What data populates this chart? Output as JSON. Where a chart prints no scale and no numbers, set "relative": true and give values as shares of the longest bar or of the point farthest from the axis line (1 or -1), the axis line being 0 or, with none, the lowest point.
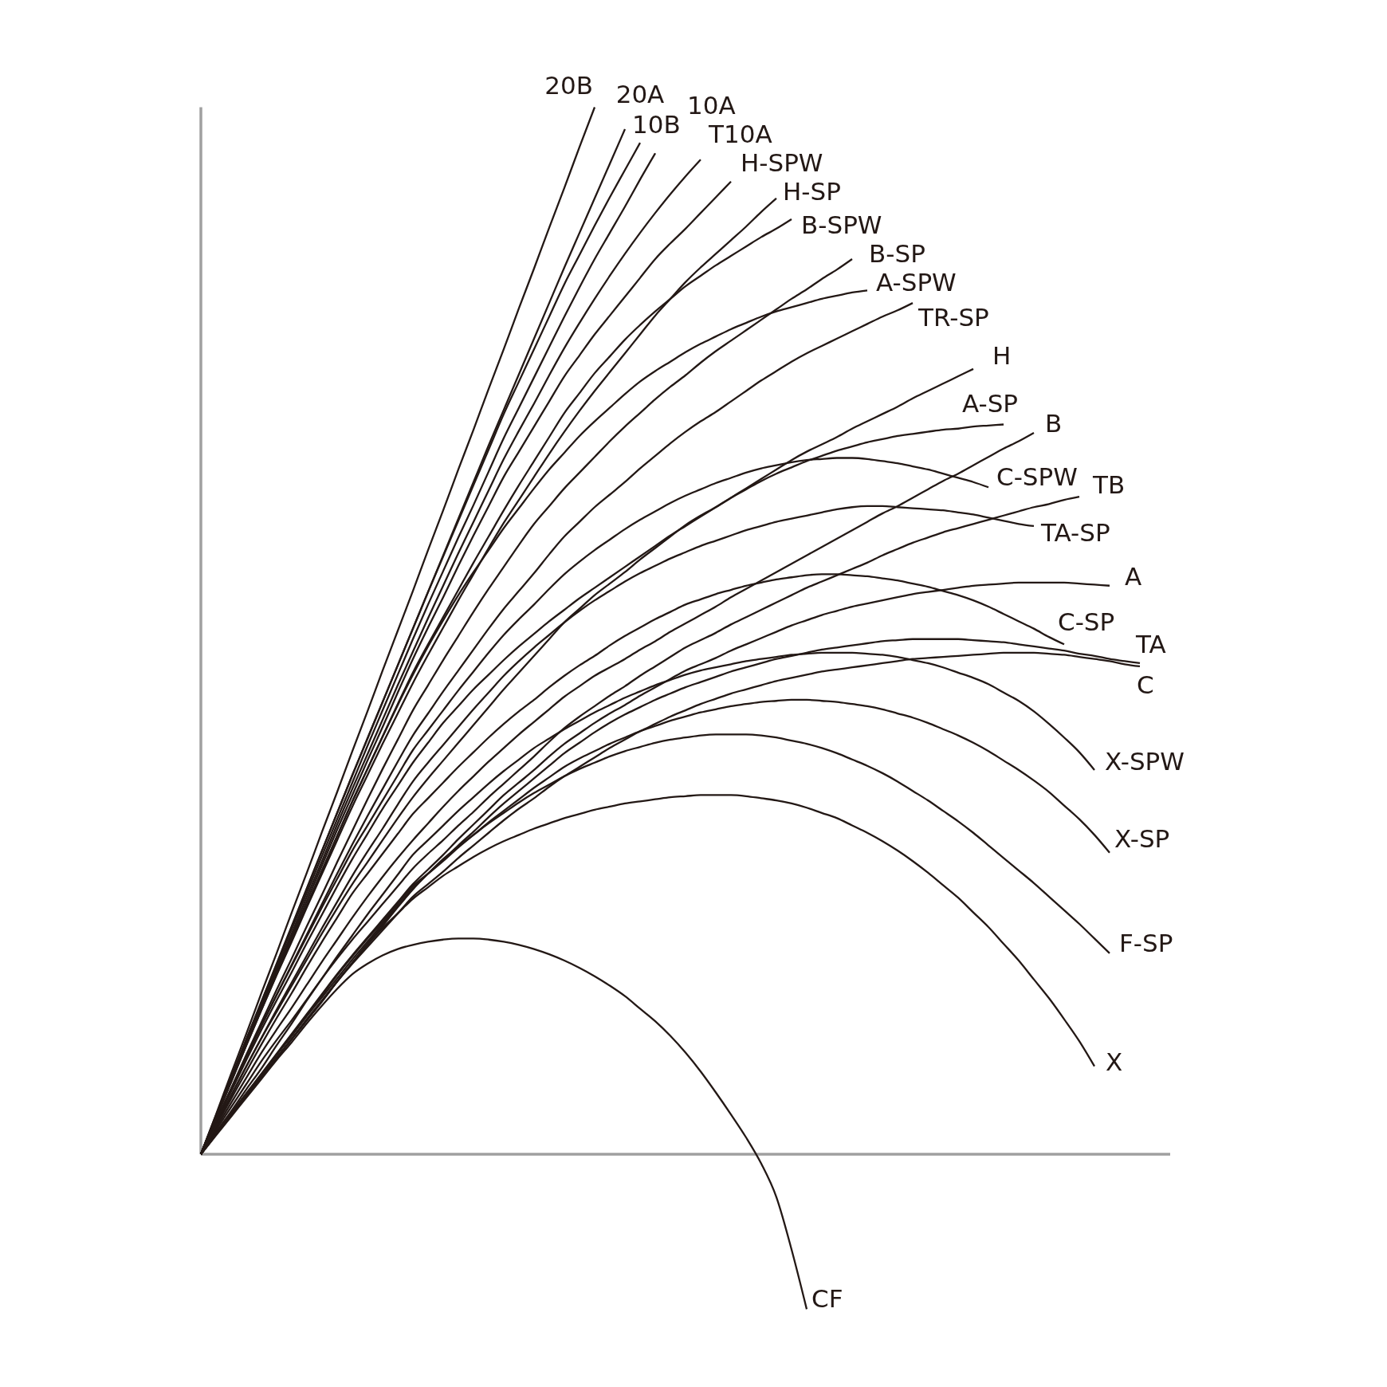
{
  "chart_data": {
    "type": "line",
    "relative": true,
    "categories": [
      null,
      null,
      null,
      null,
      null,
      null,
      null,
      null,
      null,
      null,
      null,
      null,
      null,
      null,
      null,
      null,
      null,
      null,
      null,
      null,
      null,
      null,
      null,
      null,
      null,
      null,
      null,
      null,
      null,
      null,
      null,
      null,
      null,
      null,
      null,
      null,
      null,
      null,
      null,
      null,
      null,
      null,
      null,
      null,
      null,
      null,
      null,
      null,
      null,
      null,
      null,
      null,
      null,
      null,
      null,
      null,
      null,
      null,
      null,
      null,
      null,
      null,
      null,
      null,
      null
    ],
    "series": [
      {
        "name": "20B",
        "color": "#231815",
        "values": [
          0,
          0.038,
          0.077,
          0.115,
          0.154,
          0.192,
          0.231,
          0.269,
          0.308,
          0.346,
          0.385,
          0.423,
          0.462,
          0.5,
          0.538,
          0.577,
          0.615,
          0.654,
          0.692,
          0.731,
          0.769,
          0.808,
          0.846,
          0.885,
          0.923,
          0.962,
          1.0,
          null,
          null,
          null,
          null,
          null,
          null,
          null,
          null,
          null,
          null,
          null,
          null,
          null,
          null,
          null,
          null,
          null,
          null,
          null,
          null,
          null,
          null,
          null,
          null,
          null,
          null,
          null,
          null,
          null,
          null,
          null,
          null,
          null,
          null,
          null,
          null,
          null,
          null
        ]
      },
      {
        "name": "20A",
        "color": "#231815",
        "values": [
          0,
          0.037,
          0.073,
          0.11,
          0.146,
          0.182,
          0.218,
          0.254,
          0.29,
          0.326,
          0.362,
          0.397,
          0.432,
          0.467,
          0.502,
          0.537,
          0.572,
          0.607,
          0.642,
          0.677,
          0.711,
          0.745,
          0.779,
          0.813,
          0.847,
          0.88,
          0.913,
          0.946,
          0.979,
          null,
          null,
          null,
          null,
          null,
          null,
          null,
          null,
          null,
          null,
          null,
          null,
          null,
          null,
          null,
          null,
          null,
          null,
          null,
          null,
          null,
          null,
          null,
          null,
          null,
          null,
          null,
          null,
          null,
          null,
          null,
          null,
          null,
          null,
          null,
          null
        ]
      },
      {
        "name": "10B",
        "color": "#231815",
        "values": [
          0,
          0.037,
          0.073,
          0.109,
          0.145,
          0.181,
          0.217,
          0.254,
          0.29,
          0.326,
          0.362,
          0.397,
          0.432,
          0.467,
          0.502,
          0.537,
          0.571,
          0.605,
          0.639,
          0.673,
          0.707,
          0.738,
          0.769,
          0.8,
          0.831,
          0.859,
          0.887,
          0.914,
          0.94,
          0.966,
          null,
          null,
          null,
          null,
          null,
          null,
          null,
          null,
          null,
          null,
          null,
          null,
          null,
          null,
          null,
          null,
          null,
          null,
          null,
          null,
          null,
          null,
          null,
          null,
          null,
          null,
          null,
          null,
          null,
          null,
          null,
          null,
          null,
          null,
          null
        ]
      },
      {
        "name": "10A",
        "color": "#231815",
        "values": [
          0,
          0.036,
          0.072,
          0.108,
          0.144,
          0.18,
          0.215,
          0.25,
          0.285,
          0.32,
          0.355,
          0.39,
          0.424,
          0.458,
          0.492,
          0.525,
          0.557,
          0.589,
          0.62,
          0.652,
          0.684,
          0.713,
          0.742,
          0.771,
          0.8,
          0.828,
          0.855,
          0.88,
          0.905,
          0.931,
          0.956,
          null,
          null,
          null,
          null,
          null,
          null,
          null,
          null,
          null,
          null,
          null,
          null,
          null,
          null,
          null,
          null,
          null,
          null,
          null,
          null,
          null,
          null,
          null,
          null,
          null,
          null,
          null,
          null,
          null,
          null,
          null,
          null,
          null,
          null
        ]
      },
      {
        "name": "T10A",
        "color": "#231815",
        "values": [
          0,
          0.036,
          0.071,
          0.107,
          0.142,
          0.177,
          0.211,
          0.246,
          0.28,
          0.315,
          0.349,
          0.382,
          0.415,
          0.448,
          0.48,
          0.512,
          0.543,
          0.574,
          0.604,
          0.634,
          0.664,
          0.691,
          0.717,
          0.744,
          0.77,
          0.794,
          0.817,
          0.839,
          0.86,
          0.88,
          0.899,
          0.917,
          0.934,
          0.95,
          null,
          null,
          null,
          null,
          null,
          null,
          null,
          null,
          null,
          null,
          null,
          null,
          null,
          null,
          null,
          null,
          null,
          null,
          null,
          null,
          null,
          null,
          null,
          null,
          null,
          null,
          null,
          null,
          null,
          null,
          null
        ]
      },
      {
        "name": "H-SPW",
        "color": "#231815",
        "values": [
          0,
          0.035,
          0.07,
          0.105,
          0.14,
          0.174,
          0.208,
          0.242,
          0.276,
          0.31,
          0.343,
          0.376,
          0.408,
          0.441,
          0.473,
          0.503,
          0.532,
          0.562,
          0.591,
          0.619,
          0.647,
          0.671,
          0.695,
          0.719,
          0.743,
          0.763,
          0.783,
          0.801,
          0.819,
          0.837,
          0.855,
          0.87,
          0.884,
          0.899,
          0.914,
          0.929,
          null,
          null,
          null,
          null,
          null,
          null,
          null,
          null,
          null,
          null,
          null,
          null,
          null,
          null,
          null,
          null,
          null,
          null,
          null,
          null,
          null,
          null,
          null,
          null,
          null,
          null,
          null,
          null,
          null
        ]
      },
      {
        "name": "H-SP",
        "color": "#231815",
        "values": [
          0,
          0.035,
          0.069,
          0.104,
          0.138,
          0.171,
          0.203,
          0.236,
          0.268,
          0.3,
          0.332,
          0.362,
          0.392,
          0.421,
          0.45,
          0.477,
          0.503,
          0.529,
          0.554,
          0.579,
          0.603,
          0.625,
          0.647,
          0.669,
          0.69,
          0.71,
          0.729,
          0.747,
          0.765,
          0.783,
          0.801,
          0.817,
          0.833,
          0.847,
          0.86,
          0.873,
          0.886,
          0.9,
          0.913,
          null,
          null,
          null,
          null,
          null,
          null,
          null,
          null,
          null,
          null,
          null,
          null,
          null,
          null,
          null,
          null,
          null,
          null,
          null,
          null,
          null,
          null,
          null,
          null,
          null,
          null
        ]
      },
      {
        "name": "B-SPW",
        "color": "#231815",
        "values": [
          0,
          0.035,
          0.07,
          0.105,
          0.139,
          0.172,
          0.205,
          0.238,
          0.271,
          0.304,
          0.337,
          0.368,
          0.399,
          0.43,
          0.46,
          0.487,
          0.513,
          0.539,
          0.565,
          0.59,
          0.615,
          0.639,
          0.662,
          0.685,
          0.708,
          0.727,
          0.746,
          0.762,
          0.778,
          0.792,
          0.805,
          0.817,
          0.829,
          0.839,
          0.849,
          0.858,
          0.867,
          0.876,
          0.884,
          0.893,
          null,
          null,
          null,
          null,
          null,
          null,
          null,
          null,
          null,
          null,
          null,
          null,
          null,
          null,
          null,
          null,
          null,
          null,
          null,
          null,
          null,
          null,
          null,
          null,
          null
        ]
      },
      {
        "name": "B-SP",
        "color": "#231815",
        "values": [
          0,
          0.032,
          0.063,
          0.095,
          0.126,
          0.157,
          0.187,
          0.218,
          0.248,
          0.279,
          0.309,
          0.339,
          0.368,
          0.396,
          0.424,
          0.448,
          0.472,
          0.495,
          0.518,
          0.54,
          0.561,
          0.582,
          0.602,
          0.619,
          0.636,
          0.651,
          0.666,
          0.681,
          0.695,
          0.708,
          0.721,
          0.733,
          0.744,
          0.756,
          0.767,
          0.777,
          0.787,
          0.797,
          0.807,
          0.817,
          0.826,
          0.836,
          0.845,
          0.855,
          null,
          null,
          null,
          null,
          null,
          null,
          null,
          null,
          null,
          null,
          null,
          null,
          null,
          null,
          null,
          null,
          null,
          null,
          null,
          null,
          null
        ]
      },
      {
        "name": "A-SPW",
        "color": "#231815",
        "values": [
          0,
          0.035,
          0.069,
          0.104,
          0.138,
          0.172,
          0.205,
          0.238,
          0.271,
          0.304,
          0.337,
          0.368,
          0.399,
          0.429,
          0.458,
          0.485,
          0.51,
          0.534,
          0.556,
          0.577,
          0.598,
          0.617,
          0.636,
          0.654,
          0.67,
          0.686,
          0.7,
          0.713,
          0.726,
          0.738,
          0.748,
          0.757,
          0.766,
          0.774,
          0.781,
          0.788,
          0.794,
          0.8,
          0.805,
          0.809,
          0.813,
          0.817,
          0.82,
          0.823,
          0.825,
          null,
          null,
          null,
          null,
          null,
          null,
          null,
          null,
          null,
          null,
          null,
          null,
          null,
          null,
          null,
          null,
          null,
          null,
          null,
          null
        ]
      },
      {
        "name": "TR-SP",
        "color": "#231815",
        "values": [
          0,
          0.031,
          0.062,
          0.093,
          0.123,
          0.152,
          0.181,
          0.21,
          0.239,
          0.268,
          0.296,
          0.323,
          0.349,
          0.375,
          0.4,
          0.421,
          0.442,
          0.462,
          0.482,
          0.502,
          0.521,
          0.538,
          0.555,
          0.573,
          0.59,
          0.604,
          0.618,
          0.63,
          0.642,
          0.655,
          0.667,
          0.679,
          0.69,
          0.7,
          0.709,
          0.719,
          0.729,
          0.739,
          0.748,
          0.757,
          0.765,
          0.772,
          0.779,
          0.786,
          0.793,
          0.8,
          0.806,
          0.813,
          null,
          null,
          null,
          null,
          null,
          null,
          null,
          null,
          null,
          null,
          null,
          null,
          null,
          null,
          null,
          null,
          null
        ]
      },
      {
        "name": "H",
        "color": "#231815",
        "values": [
          0,
          0.028,
          0.056,
          0.084,
          0.111,
          0.136,
          0.161,
          0.186,
          0.211,
          0.235,
          0.258,
          0.279,
          0.3,
          0.321,
          0.341,
          0.359,
          0.376,
          0.393,
          0.41,
          0.427,
          0.444,
          0.46,
          0.476,
          0.492,
          0.508,
          0.521,
          0.534,
          0.545,
          0.556,
          0.568,
          0.579,
          0.59,
          0.601,
          0.61,
          0.618,
          0.627,
          0.636,
          0.645,
          0.654,
          0.663,
          0.671,
          0.678,
          0.685,
          0.693,
          0.7,
          0.707,
          0.714,
          0.722,
          0.729,
          0.736,
          0.743,
          0.75,
          null,
          null,
          null,
          null,
          null,
          null,
          null,
          null,
          null,
          null,
          null,
          null,
          null
        ]
      },
      {
        "name": "A-SP",
        "color": "#231815",
        "values": [
          0,
          0.03,
          0.06,
          0.09,
          0.119,
          0.147,
          0.174,
          0.202,
          0.229,
          0.256,
          0.282,
          0.306,
          0.33,
          0.352,
          0.374,
          0.393,
          0.412,
          0.428,
          0.444,
          0.458,
          0.472,
          0.485,
          0.497,
          0.509,
          0.52,
          0.531,
          0.541,
          0.551,
          0.561,
          0.571,
          0.581,
          0.591,
          0.6,
          0.609,
          0.618,
          0.627,
          0.635,
          0.643,
          0.65,
          0.656,
          0.662,
          0.667,
          0.672,
          0.676,
          0.68,
          0.683,
          0.686,
          0.688,
          0.69,
          0.692,
          0.693,
          0.695,
          0.696,
          0.697,
          null,
          null,
          null,
          null,
          null,
          null,
          null,
          null,
          null,
          null,
          null
        ]
      },
      {
        "name": "B",
        "color": "#231815",
        "values": [
          0,
          0.025,
          0.049,
          0.073,
          0.097,
          0.119,
          0.14,
          0.162,
          0.184,
          0.205,
          0.226,
          0.246,
          0.265,
          0.283,
          0.3,
          0.316,
          0.332,
          0.347,
          0.361,
          0.375,
          0.388,
          0.401,
          0.413,
          0.425,
          0.437,
          0.447,
          0.457,
          0.465,
          0.473,
          0.482,
          0.49,
          0.499,
          0.507,
          0.515,
          0.523,
          0.532,
          0.54,
          0.548,
          0.556,
          0.564,
          0.572,
          0.58,
          0.588,
          0.596,
          0.604,
          0.612,
          0.619,
          0.627,
          0.635,
          0.643,
          0.65,
          0.658,
          0.666,
          0.674,
          0.681,
          0.689,
          null,
          null,
          null,
          null,
          null,
          null,
          null,
          null,
          null
        ]
      },
      {
        "name": "C-SPW",
        "color": "#231815",
        "values": [
          0,
          0.031,
          0.062,
          0.093,
          0.123,
          0.152,
          0.18,
          0.208,
          0.236,
          0.263,
          0.29,
          0.314,
          0.338,
          0.362,
          0.386,
          0.405,
          0.424,
          0.443,
          0.461,
          0.479,
          0.496,
          0.511,
          0.525,
          0.54,
          0.554,
          0.566,
          0.577,
          0.587,
          0.597,
          0.606,
          0.614,
          0.622,
          0.629,
          0.635,
          0.641,
          0.646,
          0.651,
          0.655,
          0.658,
          0.661,
          0.663,
          0.664,
          0.665,
          0.665,
          0.664,
          0.662,
          0.66,
          0.657,
          0.654,
          0.65,
          0.646,
          0.642,
          0.637,
          null,
          null,
          null,
          null,
          null,
          null,
          null,
          null,
          null,
          null,
          null,
          null
        ]
      },
      {
        "name": "TB",
        "color": "#231815",
        "values": [
          0,
          0.023,
          0.045,
          0.067,
          0.089,
          0.109,
          0.128,
          0.148,
          0.168,
          0.187,
          0.205,
          0.222,
          0.239,
          0.256,
          0.273,
          0.287,
          0.3,
          0.314,
          0.327,
          0.341,
          0.354,
          0.367,
          0.38,
          0.394,
          0.407,
          0.418,
          0.428,
          0.438,
          0.447,
          0.457,
          0.466,
          0.475,
          0.484,
          0.491,
          0.498,
          0.506,
          0.513,
          0.52,
          0.527,
          0.534,
          0.541,
          0.547,
          0.553,
          0.559,
          0.565,
          0.572,
          0.578,
          0.584,
          0.589,
          0.594,
          0.598,
          0.602,
          0.606,
          0.61,
          0.614,
          0.618,
          0.621,
          0.625,
          0.628,
          null,
          null,
          null,
          null,
          null,
          null
        ]
      },
      {
        "name": "TA-SP",
        "color": "#231815",
        "values": [
          0,
          0.028,
          0.056,
          0.084,
          0.111,
          0.138,
          0.164,
          0.19,
          0.216,
          0.241,
          0.266,
          0.289,
          0.311,
          0.334,
          0.356,
          0.374,
          0.391,
          0.408,
          0.425,
          0.441,
          0.457,
          0.471,
          0.484,
          0.496,
          0.508,
          0.519,
          0.529,
          0.538,
          0.547,
          0.555,
          0.562,
          0.569,
          0.575,
          0.581,
          0.586,
          0.591,
          0.596,
          0.6,
          0.604,
          0.607,
          0.61,
          0.613,
          0.616,
          0.618,
          0.619,
          0.619,
          0.618,
          0.617,
          0.616,
          0.615,
          0.613,
          0.611,
          0.608,
          0.605,
          0.602,
          0.6,
          null,
          null,
          null,
          null,
          null,
          null,
          null,
          null,
          null
        ]
      },
      {
        "name": "A",
        "color": "#231815",
        "values": [
          0,
          0.02,
          0.039,
          0.058,
          0.077,
          0.096,
          0.115,
          0.134,
          0.153,
          0.172,
          0.19,
          0.207,
          0.224,
          0.241,
          0.258,
          0.272,
          0.286,
          0.301,
          0.315,
          0.329,
          0.343,
          0.355,
          0.367,
          0.38,
          0.392,
          0.402,
          0.412,
          0.421,
          0.429,
          0.438,
          0.446,
          0.454,
          0.462,
          0.468,
          0.474,
          0.481,
          0.487,
          0.493,
          0.499,
          0.505,
          0.51,
          0.515,
          0.519,
          0.523,
          0.526,
          0.529,
          0.532,
          0.535,
          0.537,
          0.539,
          0.541,
          0.543,
          0.544,
          0.545,
          0.546,
          0.546,
          0.546,
          0.546,
          0.545,
          0.544,
          0.543,
          null,
          null,
          null,
          null
        ]
      },
      {
        "name": "C-SP",
        "color": "#231815",
        "values": [
          0,
          0.027,
          0.053,
          0.079,
          0.105,
          0.13,
          0.154,
          0.179,
          0.203,
          0.226,
          0.249,
          0.268,
          0.287,
          0.306,
          0.325,
          0.34,
          0.355,
          0.37,
          0.384,
          0.398,
          0.411,
          0.423,
          0.434,
          0.446,
          0.457,
          0.467,
          0.476,
          0.486,
          0.495,
          0.503,
          0.511,
          0.518,
          0.525,
          0.53,
          0.535,
          0.539,
          0.543,
          0.546,
          0.549,
          0.551,
          0.553,
          0.554,
          0.554,
          0.553,
          0.552,
          0.55,
          0.548,
          0.545,
          0.542,
          0.538,
          0.534,
          0.529,
          0.523,
          0.516,
          0.509,
          0.502,
          0.494,
          0.487,
          null,
          null,
          null,
          null,
          null,
          null,
          null
        ]
      },
      {
        "name": "TA",
        "color": "#231815",
        "values": [
          0,
          0.019,
          0.038,
          0.057,
          0.076,
          0.095,
          0.113,
          0.132,
          0.15,
          0.168,
          0.186,
          0.203,
          0.22,
          0.237,
          0.254,
          0.268,
          0.281,
          0.295,
          0.308,
          0.322,
          0.335,
          0.347,
          0.359,
          0.371,
          0.383,
          0.393,
          0.403,
          0.412,
          0.42,
          0.427,
          0.434,
          0.44,
          0.446,
          0.451,
          0.456,
          0.461,
          0.465,
          0.469,
          0.473,
          0.476,
          0.479,
          0.482,
          0.484,
          0.486,
          0.488,
          0.49,
          0.491,
          0.492,
          0.492,
          0.492,
          0.492,
          0.491,
          0.49,
          0.489,
          0.487,
          0.485,
          0.483,
          0.481,
          0.478,
          0.476,
          0.473,
          0.471,
          0.469,
          null,
          null
        ]
      },
      {
        "name": "C",
        "color": "#231815",
        "values": [
          0,
          0.019,
          0.037,
          0.056,
          0.074,
          0.092,
          0.11,
          0.129,
          0.147,
          0.165,
          0.182,
          0.198,
          0.214,
          0.23,
          0.246,
          0.258,
          0.27,
          0.283,
          0.295,
          0.307,
          0.319,
          0.33,
          0.34,
          0.351,
          0.361,
          0.37,
          0.379,
          0.388,
          0.396,
          0.404,
          0.411,
          0.418,
          0.424,
          0.43,
          0.435,
          0.44,
          0.444,
          0.448,
          0.452,
          0.455,
          0.458,
          0.461,
          0.463,
          0.465,
          0.467,
          0.469,
          0.471,
          0.473,
          0.474,
          0.475,
          0.476,
          0.477,
          0.478,
          0.479,
          0.479,
          0.479,
          0.478,
          0.477,
          0.475,
          0.473,
          0.471,
          0.468,
          0.466,
          null,
          null
        ]
      },
      {
        "name": "X-SPW",
        "color": "#231815",
        "values": [
          0,
          0.021,
          0.041,
          0.062,
          0.082,
          0.104,
          0.125,
          0.147,
          0.168,
          0.189,
          0.209,
          0.229,
          0.248,
          0.267,
          0.286,
          0.3,
          0.314,
          0.328,
          0.341,
          0.354,
          0.366,
          0.377,
          0.388,
          0.397,
          0.406,
          0.414,
          0.422,
          0.429,
          0.436,
          0.442,
          0.448,
          0.453,
          0.458,
          0.462,
          0.465,
          0.468,
          0.471,
          0.473,
          0.475,
          0.477,
          0.478,
          0.479,
          0.479,
          0.479,
          0.478,
          0.477,
          0.475,
          0.472,
          0.469,
          0.465,
          0.46,
          0.455,
          0.449,
          0.441,
          0.433,
          0.423,
          0.411,
          0.398,
          0.384,
          0.367,
          null,
          null,
          null,
          null,
          null
        ]
      },
      {
        "name": "X-SP",
        "color": "#231815",
        "values": [
          0,
          0.02,
          0.039,
          0.058,
          0.076,
          0.095,
          0.114,
          0.133,
          0.152,
          0.171,
          0.189,
          0.206,
          0.222,
          0.239,
          0.256,
          0.268,
          0.28,
          0.293,
          0.305,
          0.317,
          0.328,
          0.339,
          0.35,
          0.36,
          0.37,
          0.378,
          0.385,
          0.392,
          0.398,
          0.404,
          0.409,
          0.414,
          0.418,
          0.422,
          0.425,
          0.428,
          0.43,
          0.432,
          0.433,
          0.434,
          0.434,
          0.433,
          0.432,
          0.43,
          0.428,
          0.425,
          0.421,
          0.417,
          0.412,
          0.406,
          0.4,
          0.393,
          0.385,
          0.376,
          0.367,
          0.357,
          0.346,
          0.333,
          0.32,
          0.305,
          0.288,
          null,
          null,
          null,
          null
        ]
      },
      {
        "name": "F-SP",
        "color": "#231815",
        "values": [
          0,
          0.019,
          0.037,
          0.055,
          0.073,
          0.092,
          0.11,
          0.128,
          0.146,
          0.165,
          0.183,
          0.201,
          0.218,
          0.236,
          0.253,
          0.268,
          0.282,
          0.294,
          0.305,
          0.316,
          0.326,
          0.336,
          0.345,
          0.353,
          0.361,
          0.368,
          0.374,
          0.38,
          0.385,
          0.389,
          0.393,
          0.396,
          0.398,
          0.4,
          0.401,
          0.401,
          0.401,
          0.4,
          0.398,
          0.395,
          0.392,
          0.388,
          0.383,
          0.377,
          0.371,
          0.364,
          0.356,
          0.347,
          0.338,
          0.328,
          0.318,
          0.307,
          0.295,
          0.283,
          0.271,
          0.259,
          0.246,
          0.233,
          0.22,
          0.206,
          0.192,
          null,
          null,
          null,
          null
        ]
      },
      {
        "name": "X",
        "color": "#231815",
        "values": [
          0,
          0.019,
          0.037,
          0.055,
          0.073,
          0.092,
          0.11,
          0.128,
          0.146,
          0.165,
          0.183,
          0.2,
          0.216,
          0.23,
          0.244,
          0.255,
          0.266,
          0.275,
          0.284,
          0.292,
          0.299,
          0.305,
          0.311,
          0.316,
          0.321,
          0.325,
          0.329,
          0.332,
          0.335,
          0.337,
          0.339,
          0.341,
          0.342,
          0.343,
          0.343,
          0.343,
          0.342,
          0.34,
          0.338,
          0.335,
          0.331,
          0.326,
          0.321,
          0.314,
          0.307,
          0.299,
          0.29,
          0.28,
          0.269,
          0.257,
          0.245,
          0.231,
          0.217,
          0.201,
          0.185,
          0.167,
          0.149,
          0.129,
          0.108,
          0.084,
          null,
          null,
          null,
          null,
          null
        ]
      },
      {
        "name": "CF",
        "color": "#231815",
        "values": [
          0,
          0.018,
          0.036,
          0.054,
          0.072,
          0.09,
          0.107,
          0.125,
          0.142,
          0.158,
          0.172,
          0.182,
          0.19,
          0.196,
          0.2,
          0.203,
          0.205,
          0.206,
          0.206,
          0.205,
          0.203,
          0.2,
          0.196,
          0.191,
          0.185,
          0.178,
          0.17,
          0.161,
          0.151,
          0.139,
          0.127,
          0.113,
          0.097,
          0.079,
          0.059,
          0.038,
          0.016,
          -0.009,
          -0.041,
          -0.091,
          -0.148,
          null,
          null,
          null,
          null,
          null,
          null,
          null,
          null,
          null,
          null,
          null,
          null,
          null,
          null,
          null,
          null,
          null,
          null,
          null,
          null,
          null,
          null,
          null,
          null
        ]
      }
    ]
  }
}
